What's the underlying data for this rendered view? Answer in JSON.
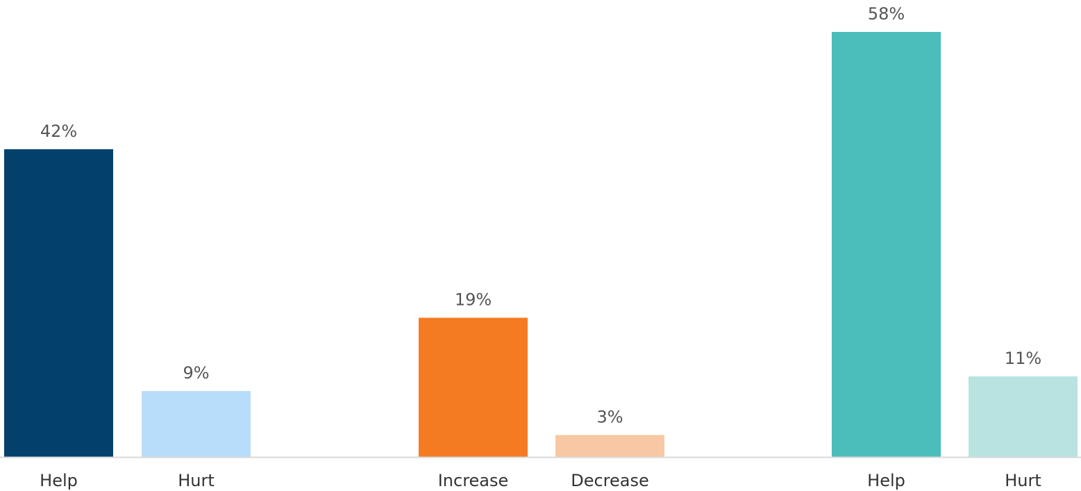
{
  "chart_data": {
    "type": "bar",
    "title": "",
    "xlabel": "",
    "ylabel": "",
    "ylim": [
      0,
      58
    ],
    "grid": false,
    "legend": "none",
    "unit": "%",
    "categories": [
      "Help",
      "Hurt",
      "Increase",
      "Decrease",
      "Help",
      "Hurt"
    ],
    "values": [
      42,
      9,
      19,
      3,
      58,
      11
    ],
    "value_labels": [
      "42%",
      "9%",
      "19%",
      "3%",
      "58%",
      "11%"
    ],
    "colors": [
      "#03416b",
      "#b8ddfb",
      "#f47b22",
      "#f8c8a4",
      "#4bbdbb",
      "#b9e3e1"
    ]
  }
}
